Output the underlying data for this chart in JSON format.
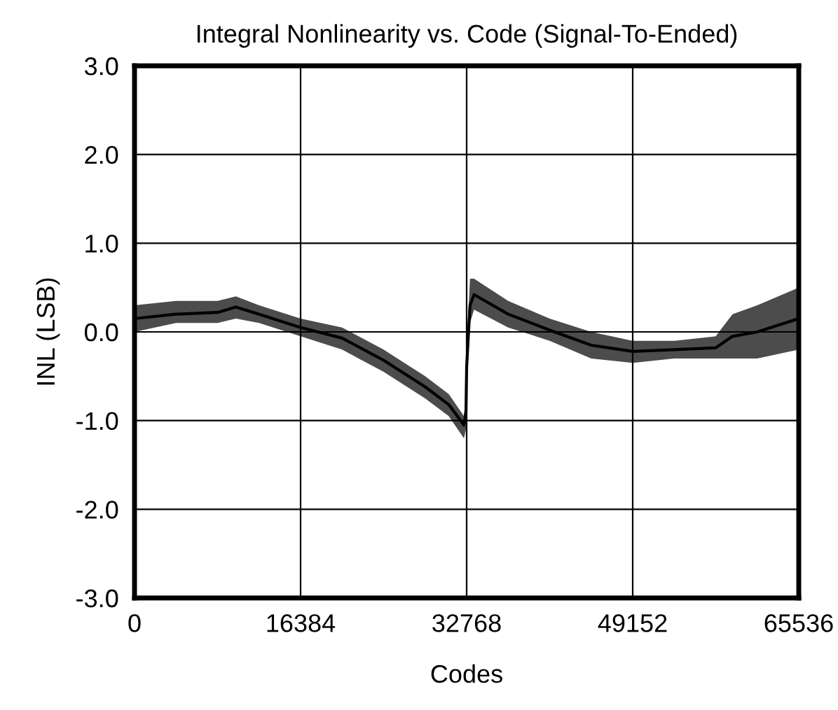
{
  "chart_data": {
    "type": "line",
    "title": "Integral Nonlinearity vs. Code (Signal-To-Ended)",
    "xlabel": "Codes",
    "ylabel": "INL (LSB)",
    "xlim": [
      0,
      65536
    ],
    "xticks": [
      0,
      16384,
      32768,
      49152,
      65536
    ],
    "ylim": [
      -3,
      3
    ],
    "yticks": [
      {
        "value": -3,
        "label": "-3.0"
      },
      {
        "value": -2,
        "label": "-2.0"
      },
      {
        "value": -1,
        "label": "-1.0"
      },
      {
        "value": 0,
        "label": "0.0"
      },
      {
        "value": 1,
        "label": "1.0"
      },
      {
        "value": 2,
        "label": "2.0"
      },
      {
        "value": 3,
        "label": "3.0"
      }
    ],
    "grid": true,
    "legend": false,
    "series": [
      {
        "color": "#000000",
        "x": [
          0,
          4096,
          8192,
          10000,
          12288,
          16384,
          20480,
          24576,
          28672,
          31000,
          32500,
          32700,
          32768,
          33100,
          33500,
          36864,
          40960,
          45056,
          49152,
          53248,
          57344,
          59000,
          61440,
          65536
        ],
        "values": [
          0.15,
          0.2,
          0.22,
          0.28,
          0.2,
          0.05,
          -0.07,
          -0.32,
          -0.62,
          -0.82,
          -1.05,
          -0.9,
          -0.4,
          0.3,
          0.42,
          0.2,
          0.02,
          -0.15,
          -0.22,
          -0.2,
          -0.18,
          -0.05,
          0.0,
          0.15
        ],
        "lower": [
          0.0,
          0.1,
          0.1,
          0.15,
          0.1,
          -0.05,
          -0.2,
          -0.45,
          -0.75,
          -0.95,
          -1.2,
          -1.1,
          -0.6,
          0.1,
          0.25,
          0.05,
          -0.1,
          -0.3,
          -0.35,
          -0.3,
          -0.3,
          -0.3,
          -0.3,
          -0.2
        ],
        "upper": [
          0.3,
          0.35,
          0.35,
          0.4,
          0.3,
          0.15,
          0.05,
          -0.2,
          -0.5,
          -0.7,
          -0.95,
          -0.7,
          -0.2,
          0.6,
          0.6,
          0.35,
          0.15,
          0.0,
          -0.1,
          -0.1,
          -0.05,
          0.2,
          0.3,
          0.5
        ]
      }
    ]
  }
}
